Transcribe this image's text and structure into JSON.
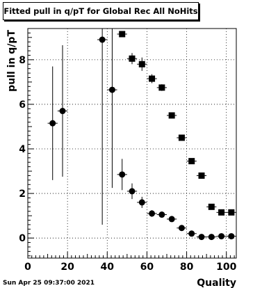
{
  "chart_data": {
    "type": "scatter",
    "title": "Fitted pull in q/pT for Global Rec All NoHits",
    "xlabel": "Quality",
    "ylabel": "pull in q/pT",
    "footer": "Sun Apr 25 09:37:00 2021",
    "xlim": [
      0,
      105
    ],
    "ylim": [
      -0.9,
      9.4
    ],
    "x_ticks": [
      0,
      20,
      40,
      60,
      80,
      100
    ],
    "y_ticks": [
      0,
      2,
      4,
      6,
      8
    ],
    "grid": true,
    "series": [
      {
        "marker": "square",
        "points": [
          {
            "x": 47.5,
            "y": 9.15,
            "xerr": 2.5,
            "yerr": 0.0
          },
          {
            "x": 52.5,
            "y": 8.05,
            "xerr": 2.5,
            "yerr": 0.25
          },
          {
            "x": 57.5,
            "y": 7.8,
            "xerr": 2.5,
            "yerr": 0.3
          },
          {
            "x": 62.5,
            "y": 7.15,
            "xerr": 2.5,
            "yerr": 0.2
          },
          {
            "x": 67.5,
            "y": 6.75,
            "xerr": 2.5,
            "yerr": 0.15
          },
          {
            "x": 72.5,
            "y": 5.5,
            "xerr": 2.5,
            "yerr": 0.1
          },
          {
            "x": 77.5,
            "y": 4.5,
            "xerr": 2.5,
            "yerr": 0.08
          },
          {
            "x": 82.5,
            "y": 3.45,
            "xerr": 2.5,
            "yerr": 0.06
          },
          {
            "x": 87.5,
            "y": 2.8,
            "xerr": 2.5,
            "yerr": 0.05
          },
          {
            "x": 92.5,
            "y": 1.4,
            "xerr": 2.5,
            "yerr": 0.04
          },
          {
            "x": 97.5,
            "y": 1.15,
            "xerr": 2.5,
            "yerr": 0.04
          },
          {
            "x": 102.5,
            "y": 1.15,
            "xerr": 2.5,
            "yerr": 0.04
          }
        ]
      },
      {
        "marker": "circle",
        "points": [
          {
            "x": 12.5,
            "y": 5.15,
            "xerr": 2.5,
            "yerr": 2.55
          },
          {
            "x": 17.5,
            "y": 5.7,
            "xerr": 2.5,
            "yerr": 2.95
          },
          {
            "x": 37.5,
            "y": 8.9,
            "xerr": 2.5,
            "yerr": 8.3
          },
          {
            "x": 42.5,
            "y": 6.65,
            "xerr": 2.5,
            "yerr": 4.4
          },
          {
            "x": 47.5,
            "y": 2.85,
            "xerr": 2.5,
            "yerr": 0.7
          },
          {
            "x": 52.5,
            "y": 2.1,
            "xerr": 2.5,
            "yerr": 0.35
          },
          {
            "x": 57.5,
            "y": 1.6,
            "xerr": 2.5,
            "yerr": 0.25
          },
          {
            "x": 62.5,
            "y": 1.1,
            "xerr": 2.5,
            "yerr": 0.15
          },
          {
            "x": 67.5,
            "y": 1.05,
            "xerr": 2.5,
            "yerr": 0.1
          },
          {
            "x": 72.5,
            "y": 0.85,
            "xerr": 2.5,
            "yerr": 0.08
          },
          {
            "x": 77.5,
            "y": 0.45,
            "xerr": 2.5,
            "yerr": 0.06
          },
          {
            "x": 82.5,
            "y": 0.2,
            "xerr": 2.5,
            "yerr": 0.05
          },
          {
            "x": 87.5,
            "y": 0.05,
            "xerr": 2.5,
            "yerr": 0.04
          },
          {
            "x": 92.5,
            "y": 0.05,
            "xerr": 2.5,
            "yerr": 0.04
          },
          {
            "x": 97.5,
            "y": 0.08,
            "xerr": 2.5,
            "yerr": 0.04
          },
          {
            "x": 102.5,
            "y": 0.08,
            "xerr": 2.5,
            "yerr": 0.04
          }
        ]
      }
    ]
  }
}
